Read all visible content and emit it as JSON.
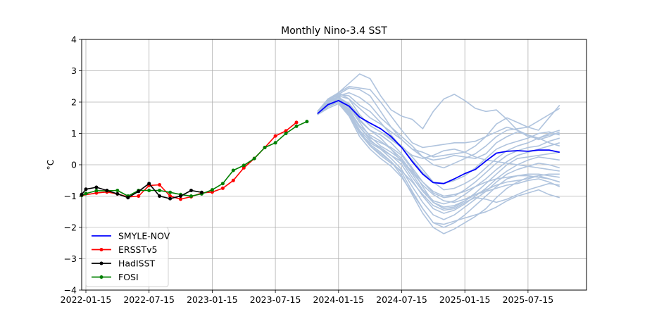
{
  "chart_data": {
    "type": "line",
    "title": "Monthly Nino-3.4 SST",
    "xlabel": "",
    "ylabel": "°C",
    "ylim": [
      -4,
      4
    ],
    "yticks": [
      -4,
      -3,
      -2,
      -1,
      0,
      1,
      2,
      3,
      4
    ],
    "ytick_labels": [
      "−4",
      "−3",
      "−2",
      "−1",
      "0",
      "1",
      "2",
      "3",
      "4"
    ],
    "xlim_months": [
      -0.4,
      47.5
    ],
    "xaxis_origin": "2022-01-15",
    "xtick_months": [
      0,
      6,
      12,
      18,
      24,
      30,
      36,
      42
    ],
    "xtick_labels": [
      "2022-01-15",
      "2022-07-15",
      "2023-01-15",
      "2023-07-15",
      "2024-01-15",
      "2024-07-15",
      "2025-01-15",
      "2025-07-15"
    ],
    "grid": true,
    "legend_position": "lower-left",
    "colors": {
      "SMYLE-NOV": "#0000ff",
      "ERSSTv5": "#ff0000",
      "HadISST": "#000000",
      "FOSI": "#008000",
      "ensemble": "#b0c4de"
    },
    "legend": [
      {
        "label": "SMYLE-NOV",
        "key": "SMYLE-NOV",
        "marker": false
      },
      {
        "label": "ERSSTv5",
        "key": "ERSSTv5",
        "marker": true
      },
      {
        "label": "HadISST",
        "key": "HadISST",
        "marker": true
      },
      {
        "label": "FOSI",
        "key": "FOSI",
        "marker": true
      }
    ],
    "series": [
      {
        "name": "ERSSTv5",
        "x_months": [
          -0.4,
          1,
          2,
          3,
          4,
          5,
          6,
          7,
          8,
          9,
          10,
          11,
          12,
          13,
          14,
          15,
          16,
          17,
          18,
          19,
          20
        ],
        "values": [
          -0.98,
          -0.9,
          -0.87,
          -0.93,
          -1.03,
          -1.0,
          -0.66,
          -0.64,
          -1.0,
          -1.1,
          -1.02,
          -0.9,
          -0.87,
          -0.75,
          -0.5,
          -0.1,
          0.2,
          0.55,
          0.92,
          1.08,
          1.35
        ]
      },
      {
        "name": "HadISST",
        "x_months": [
          -0.4,
          0,
          1,
          2,
          3,
          4,
          5,
          6,
          7,
          8,
          9,
          10,
          11
        ],
        "values": [
          -0.95,
          -0.78,
          -0.72,
          -0.82,
          -0.93,
          -1.05,
          -0.85,
          -0.6,
          -1.0,
          -1.08,
          -1.0,
          -0.82,
          -0.88
        ]
      },
      {
        "name": "FOSI",
        "x_months": [
          -0.4,
          0,
          1,
          2,
          3,
          4,
          5,
          6,
          7,
          8,
          9,
          10,
          11,
          12,
          13,
          14,
          15,
          16,
          17,
          18,
          19,
          20,
          21
        ],
        "values": [
          -0.98,
          -0.92,
          -0.83,
          -0.83,
          -0.82,
          -1.0,
          -0.82,
          -0.82,
          -0.82,
          -0.88,
          -0.95,
          -1.0,
          -0.93,
          -0.8,
          -0.6,
          -0.18,
          -0.02,
          0.2,
          0.55,
          0.7,
          1.0,
          1.23,
          1.38
        ]
      },
      {
        "name": "SMYLE-NOV",
        "x_months": [
          22,
          23,
          24,
          25,
          26,
          27,
          28,
          29,
          30,
          31,
          32,
          33,
          34,
          35,
          36,
          37,
          38,
          39,
          40,
          41,
          42,
          43,
          44,
          45
        ],
        "values": [
          1.63,
          1.92,
          2.05,
          1.87,
          1.52,
          1.33,
          1.15,
          0.9,
          0.55,
          0.1,
          -0.3,
          -0.57,
          -0.6,
          -0.45,
          -0.28,
          -0.15,
          0.12,
          0.37,
          0.43,
          0.45,
          0.43,
          0.47,
          0.47,
          0.4
        ]
      }
    ],
    "ensemble": {
      "name": "SMYLE-NOV members",
      "x_months": [
        22,
        23,
        24,
        25,
        26,
        27,
        28,
        29,
        30,
        31,
        32,
        33,
        34,
        35,
        36,
        37,
        38,
        39,
        40,
        41,
        42,
        43,
        44,
        45
      ],
      "members": [
        [
          1.65,
          2.0,
          2.3,
          2.6,
          2.9,
          2.75,
          2.2,
          1.75,
          1.55,
          1.45,
          1.15,
          1.7,
          2.1,
          2.25,
          2.05,
          1.8,
          1.7,
          1.75,
          1.45,
          1.1,
          0.9,
          0.85,
          1.0,
          1.1
        ],
        [
          1.65,
          2.05,
          2.25,
          2.45,
          2.4,
          2.2,
          1.7,
          1.2,
          0.8,
          0.5,
          0.4,
          0.25,
          0.3,
          0.35,
          0.4,
          0.6,
          0.9,
          1.3,
          1.5,
          1.35,
          1.2,
          1.1,
          1.5,
          1.9
        ],
        [
          1.6,
          2.1,
          2.3,
          2.5,
          2.45,
          2.4,
          2.0,
          1.55,
          1.1,
          0.7,
          0.55,
          0.6,
          0.65,
          0.7,
          0.7,
          0.75,
          0.9,
          1.05,
          1.2,
          1.1,
          0.95,
          0.85,
          0.7,
          0.6
        ],
        [
          1.7,
          2.1,
          2.2,
          2.3,
          2.15,
          1.9,
          1.5,
          1.2,
          0.9,
          0.6,
          0.25,
          0.0,
          -0.1,
          0.05,
          0.2,
          0.35,
          0.6,
          0.9,
          1.1,
          1.15,
          1.2,
          1.4,
          1.6,
          1.8
        ],
        [
          1.6,
          1.95,
          2.2,
          2.1,
          1.8,
          1.5,
          1.3,
          1.05,
          0.8,
          0.5,
          0.25,
          0.15,
          0.2,
          0.3,
          0.25,
          0.2,
          0.35,
          0.7,
          0.9,
          1.05,
          0.95,
          0.8,
          0.9,
          1.05
        ],
        [
          1.7,
          2.0,
          2.25,
          2.2,
          1.9,
          1.7,
          1.35,
          0.95,
          0.55,
          0.15,
          -0.25,
          -0.55,
          -0.6,
          -0.5,
          -0.35,
          -0.1,
          0.2,
          0.5,
          0.65,
          0.75,
          0.85,
          1.0,
          1.05,
          0.95
        ],
        [
          1.65,
          2.05,
          2.3,
          2.1,
          1.6,
          1.25,
          1.05,
          0.85,
          0.6,
          0.25,
          -0.15,
          -0.55,
          -0.8,
          -0.75,
          -0.6,
          -0.4,
          -0.1,
          0.2,
          0.45,
          0.6,
          0.7,
          0.85,
          0.95,
          1.0
        ],
        [
          1.6,
          1.85,
          2.1,
          1.9,
          1.4,
          1.1,
          0.95,
          0.7,
          0.35,
          -0.1,
          -0.55,
          -0.9,
          -1.05,
          -1.0,
          -0.8,
          -0.55,
          -0.25,
          0.05,
          0.3,
          0.45,
          0.55,
          0.6,
          0.75,
          0.85
        ],
        [
          1.65,
          2.0,
          2.15,
          1.85,
          1.35,
          0.9,
          0.6,
          0.4,
          0.15,
          -0.3,
          -0.8,
          -1.15,
          -1.25,
          -1.15,
          -0.95,
          -0.7,
          -0.45,
          -0.15,
          0.1,
          0.3,
          0.4,
          0.5,
          0.6,
          0.7
        ],
        [
          1.7,
          2.1,
          2.2,
          1.8,
          1.2,
          0.85,
          0.7,
          0.55,
          0.3,
          -0.15,
          -0.7,
          -1.2,
          -1.4,
          -1.35,
          -1.15,
          -0.9,
          -0.6,
          -0.3,
          0.0,
          0.2,
          0.25,
          0.3,
          0.35,
          0.4
        ],
        [
          1.6,
          1.9,
          2.05,
          1.7,
          1.1,
          0.75,
          0.55,
          0.3,
          0.0,
          -0.5,
          -1.0,
          -1.4,
          -1.55,
          -1.45,
          -1.25,
          -1.0,
          -0.75,
          -0.45,
          -0.2,
          0.0,
          0.15,
          0.25,
          0.2,
          0.15
        ],
        [
          1.65,
          1.95,
          2.1,
          1.75,
          1.2,
          0.8,
          0.5,
          0.2,
          -0.15,
          -0.7,
          -1.2,
          -1.6,
          -1.75,
          -1.6,
          -1.35,
          -1.1,
          -0.85,
          -0.55,
          -0.3,
          -0.15,
          -0.05,
          0.05,
          0.0,
          -0.1
        ],
        [
          1.6,
          1.85,
          2.0,
          1.6,
          1.0,
          0.6,
          0.35,
          0.1,
          -0.25,
          -0.85,
          -1.4,
          -1.85,
          -2.0,
          -1.85,
          -1.6,
          -1.3,
          -1.0,
          -0.7,
          -0.45,
          -0.35,
          -0.3,
          -0.3,
          -0.35,
          -0.4
        ],
        [
          1.65,
          1.9,
          2.05,
          1.65,
          1.05,
          0.65,
          0.4,
          0.1,
          -0.35,
          -0.95,
          -1.55,
          -2.0,
          -2.2,
          -2.05,
          -1.85,
          -1.65,
          -1.4,
          -1.05,
          -0.75,
          -0.55,
          -0.4,
          -0.35,
          -0.45,
          -0.55
        ],
        [
          1.6,
          1.8,
          1.95,
          1.55,
          0.9,
          0.5,
          0.2,
          -0.05,
          -0.4,
          -0.9,
          -1.4,
          -1.85,
          -1.9,
          -1.8,
          -1.7,
          -1.6,
          -1.5,
          -1.35,
          -1.15,
          -1.0,
          -0.9,
          -0.8,
          -0.95,
          -1.05
        ],
        [
          1.65,
          1.9,
          2.0,
          1.6,
          1.0,
          0.7,
          0.5,
          0.3,
          0.1,
          -0.2,
          -0.55,
          -0.85,
          -1.0,
          -0.95,
          -0.85,
          -0.7,
          -0.55,
          -0.45,
          -0.4,
          -0.35,
          -0.35,
          -0.4,
          -0.45,
          -0.55
        ],
        [
          1.6,
          1.85,
          2.05,
          1.75,
          1.25,
          0.95,
          0.75,
          0.5,
          0.2,
          -0.25,
          -0.65,
          -0.95,
          -1.15,
          -1.2,
          -1.1,
          -0.95,
          -0.85,
          -0.75,
          -0.65,
          -0.6,
          -0.5,
          -0.45,
          -0.55,
          -0.7
        ],
        [
          1.7,
          2.05,
          2.15,
          1.9,
          1.45,
          1.1,
          0.85,
          0.5,
          0.1,
          -0.4,
          -0.85,
          -1.2,
          -1.35,
          -1.3,
          -1.15,
          -0.95,
          -0.8,
          -0.65,
          -0.55,
          -0.5,
          -0.45,
          -0.35,
          -0.3,
          -0.3
        ],
        [
          1.65,
          1.95,
          2.1,
          1.7,
          1.1,
          0.6,
          0.3,
          0.05,
          -0.2,
          -0.55,
          -0.95,
          -1.3,
          -1.45,
          -1.4,
          -1.2,
          -1.05,
          -1.1,
          -1.2,
          -1.1,
          -0.95,
          -0.8,
          -0.7,
          -0.6,
          -0.65
        ],
        [
          1.6,
          1.95,
          2.15,
          1.95,
          1.55,
          1.25,
          1.05,
          0.8,
          0.55,
          0.3,
          0.2,
          0.3,
          0.45,
          0.5,
          0.4,
          0.25,
          0.15,
          0.1,
          0.05,
          0.0,
          -0.05,
          -0.1,
          -0.15,
          -0.2
        ]
      ]
    }
  }
}
